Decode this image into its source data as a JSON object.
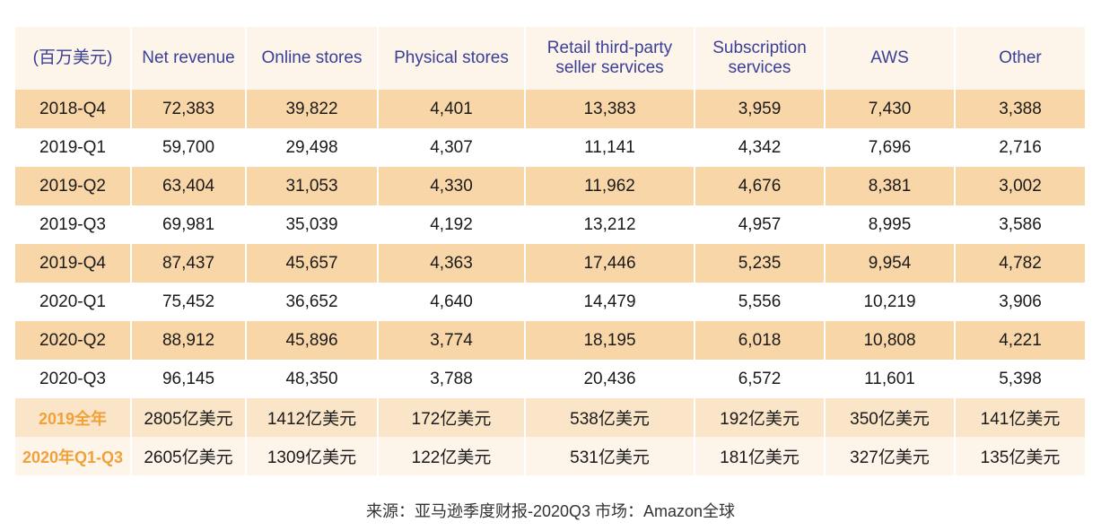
{
  "chart_data": {
    "type": "table",
    "columns": [
      "(百万美元)",
      "Net revenue",
      "Online stores",
      "Physical stores",
      "Retail third-party seller services",
      "Subscription services",
      "AWS",
      "Other"
    ],
    "rows": [
      [
        "2018-Q4",
        "72,383",
        "39,822",
        "4,401",
        "13,383",
        "3,959",
        "7,430",
        "3,388"
      ],
      [
        "2019-Q1",
        "59,700",
        "29,498",
        "4,307",
        "11,141",
        "4,342",
        "7,696",
        "2,716"
      ],
      [
        "2019-Q2",
        "63,404",
        "31,053",
        "4,330",
        "11,962",
        "4,676",
        "8,381",
        "3,002"
      ],
      [
        "2019-Q3",
        "69,981",
        "35,039",
        "4,192",
        "13,212",
        "4,957",
        "8,995",
        "3,586"
      ],
      [
        "2019-Q4",
        "87,437",
        "45,657",
        "4,363",
        "17,446",
        "5,235",
        "9,954",
        "4,782"
      ],
      [
        "2020-Q1",
        "75,452",
        "36,652",
        "4,640",
        "14,479",
        "5,556",
        "10,219",
        "3,906"
      ],
      [
        "2020-Q2",
        "88,912",
        "45,896",
        "3,774",
        "18,195",
        "6,018",
        "10,808",
        "4,221"
      ],
      [
        "2020-Q3",
        "96,145",
        "48,350",
        "3,788",
        "20,436",
        "6,572",
        "11,601",
        "5,398"
      ],
      [
        "2019全年",
        "2805亿美元",
        "1412亿美元",
        "172亿美元",
        "538亿美元",
        "192亿美元",
        "350亿美元",
        "141亿美元"
      ],
      [
        "2020年Q1-Q3",
        "2605亿美元",
        "1309亿美元",
        "122亿美元",
        "531亿美元",
        "181亿美元",
        "327亿美元",
        "135亿美元"
      ]
    ]
  },
  "source_note": "来源：亚马逊季度财报-2020Q3    市场：Amazon全球",
  "colors": {
    "header_text": "#3a3f97",
    "header_bg": "#fdf4ea",
    "band_bg": "#f9d6a7",
    "summary_label": "#f0a13a"
  }
}
